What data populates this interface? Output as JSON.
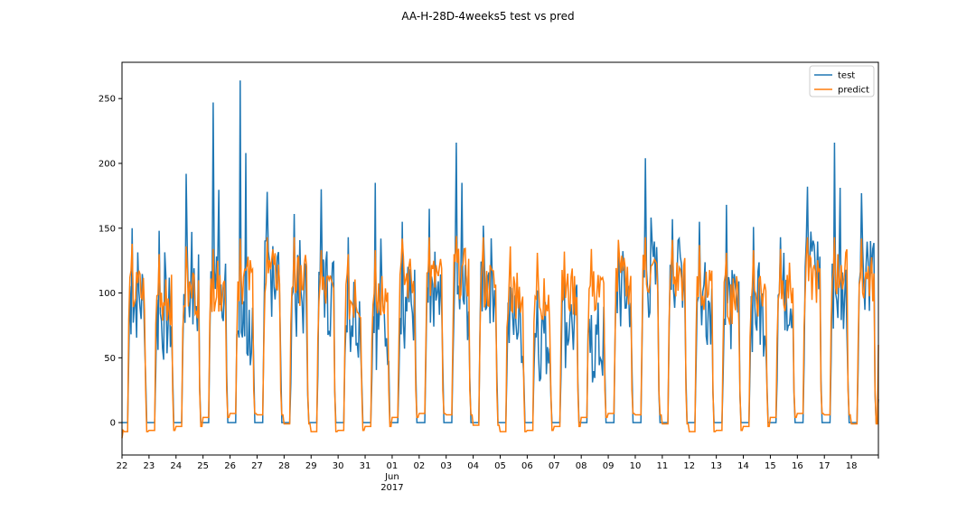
{
  "chart_data": {
    "type": "line",
    "title": "AA-H-28D-4weeks5 test vs pred",
    "xlabel": "",
    "ylabel": "",
    "ylim": [
      -25,
      278
    ],
    "yticks": [
      0,
      50,
      100,
      150,
      200,
      250
    ],
    "grid": false,
    "legend": "top-right",
    "x_range_days": [
      0,
      28
    ],
    "x_ticks": [
      {
        "day": 0,
        "label": "22"
      },
      {
        "day": 1,
        "label": "23"
      },
      {
        "day": 2,
        "label": "24"
      },
      {
        "day": 3,
        "label": "25"
      },
      {
        "day": 4,
        "label": "26"
      },
      {
        "day": 5,
        "label": "27"
      },
      {
        "day": 6,
        "label": "28"
      },
      {
        "day": 7,
        "label": "29"
      },
      {
        "day": 8,
        "label": "30"
      },
      {
        "day": 9,
        "label": "31"
      },
      {
        "day": 10,
        "label": "01",
        "sub1": "Jun",
        "sub2": "2017"
      },
      {
        "day": 11,
        "label": "02"
      },
      {
        "day": 12,
        "label": "03"
      },
      {
        "day": 13,
        "label": "04"
      },
      {
        "day": 14,
        "label": "05"
      },
      {
        "day": 15,
        "label": "06"
      },
      {
        "day": 16,
        "label": "07"
      },
      {
        "day": 17,
        "label": "08"
      },
      {
        "day": 18,
        "label": "09"
      },
      {
        "day": 19,
        "label": "10"
      },
      {
        "day": 20,
        "label": "11"
      },
      {
        "day": 21,
        "label": "12"
      },
      {
        "day": 22,
        "label": "13"
      },
      {
        "day": 23,
        "label": "14"
      },
      {
        "day": 24,
        "label": "15"
      },
      {
        "day": 25,
        "label": "16"
      },
      {
        "day": 26,
        "label": "17"
      },
      {
        "day": 27,
        "label": "18"
      },
      {
        "day": 28,
        "label": ""
      }
    ],
    "x_date_range": [
      "2017-05-22",
      "2017-06-19"
    ],
    "series": [
      {
        "name": "test",
        "color": "#1f77b4",
        "daily_pattern": [
          {
            "peak": 150,
            "mid": 95,
            "base": 0
          },
          {
            "peak": 148,
            "mid": 80,
            "base": 0
          },
          {
            "peak": 192,
            "mid": 100,
            "base": 0
          },
          {
            "peak": 247,
            "mid": 110,
            "base": 0
          },
          {
            "peak": 264,
            "mid": 70,
            "base": 0
          },
          {
            "peak": 178,
            "mid": 115,
            "base": 0
          },
          {
            "peak": 161,
            "mid": 95,
            "base": 0
          },
          {
            "peak": 180,
            "mid": 100,
            "base": 0
          },
          {
            "peak": 143,
            "mid": 85,
            "base": 0
          },
          {
            "peak": 185,
            "mid": 75,
            "base": 0
          },
          {
            "peak": 155,
            "mid": 90,
            "base": 0
          },
          {
            "peak": 165,
            "mid": 80,
            "base": 0
          },
          {
            "peak": 216,
            "mid": 95,
            "base": 0
          },
          {
            "peak": 152,
            "mid": 110,
            "base": 0
          },
          {
            "peak": 104,
            "mid": 75,
            "base": 0
          },
          {
            "peak": 102,
            "mid": 65,
            "base": 0
          },
          {
            "peak": 110,
            "mid": 75,
            "base": 0
          },
          {
            "peak": 83,
            "mid": 60,
            "base": 0
          },
          {
            "peak": 139,
            "mid": 100,
            "base": 0
          },
          {
            "peak": 204,
            "mid": 110,
            "base": 0
          },
          {
            "peak": 157,
            "mid": 120,
            "base": 0
          },
          {
            "peak": 155,
            "mid": 95,
            "base": 0
          },
          {
            "peak": 168,
            "mid": 80,
            "base": 0
          },
          {
            "peak": 151,
            "mid": 85,
            "base": 0
          },
          {
            "peak": 143,
            "mid": 100,
            "base": 0
          },
          {
            "peak": 182,
            "mid": 120,
            "base": 0
          },
          {
            "peak": 216,
            "mid": 100,
            "base": 0
          },
          {
            "peak": 177,
            "mid": 120,
            "base": 0
          }
        ]
      },
      {
        "name": "predict",
        "color": "#ff7f0e",
        "daily_pattern": [
          {
            "peak": 138,
            "mid": 100,
            "base": -7
          },
          {
            "peak": 130,
            "mid": 95,
            "base": -6
          },
          {
            "peak": 136,
            "mid": 100,
            "base": -3
          },
          {
            "peak": 134,
            "mid": 105,
            "base": 4
          },
          {
            "peak": 142,
            "mid": 110,
            "base": 7
          },
          {
            "peak": 143,
            "mid": 115,
            "base": 6
          },
          {
            "peak": 143,
            "mid": 110,
            "base": -1
          },
          {
            "peak": 133,
            "mid": 100,
            "base": -7
          },
          {
            "peak": 130,
            "mid": 95,
            "base": -6
          },
          {
            "peak": 133,
            "mid": 100,
            "base": -3
          },
          {
            "peak": 142,
            "mid": 110,
            "base": 4
          },
          {
            "peak": 143,
            "mid": 110,
            "base": 7
          },
          {
            "peak": 144,
            "mid": 115,
            "base": 6
          },
          {
            "peak": 143,
            "mid": 105,
            "base": -2
          },
          {
            "peak": 136,
            "mid": 100,
            "base": -7
          },
          {
            "peak": 131,
            "mid": 95,
            "base": -6
          },
          {
            "peak": 132,
            "mid": 100,
            "base": -3
          },
          {
            "peak": 134,
            "mid": 100,
            "base": 4
          },
          {
            "peak": 141,
            "mid": 110,
            "base": 7
          },
          {
            "peak": 143,
            "mid": 115,
            "base": 6
          },
          {
            "peak": 141,
            "mid": 110,
            "base": -1
          },
          {
            "peak": 137,
            "mid": 100,
            "base": -7
          },
          {
            "peak": 131,
            "mid": 95,
            "base": -6
          },
          {
            "peak": 133,
            "mid": 100,
            "base": -3
          },
          {
            "peak": 134,
            "mid": 105,
            "base": 4
          },
          {
            "peak": 143,
            "mid": 110,
            "base": 7
          },
          {
            "peak": 143,
            "mid": 115,
            "base": 6
          },
          {
            "peak": 142,
            "mid": 110,
            "base": -1
          }
        ]
      }
    ]
  }
}
